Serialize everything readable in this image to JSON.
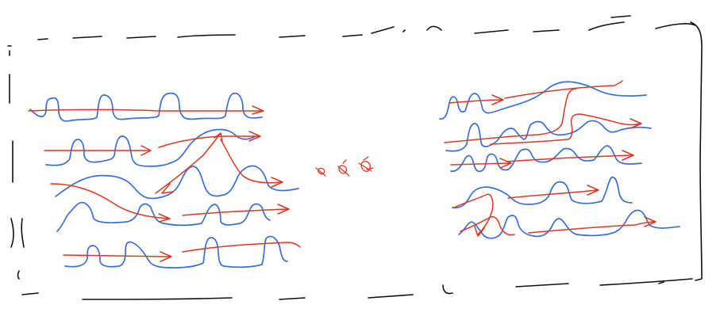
{
  "colors": {
    "ink": "#111111",
    "blue": "#3b6fd8",
    "red": "#d93a25",
    "background": "#ffffff"
  }
}
